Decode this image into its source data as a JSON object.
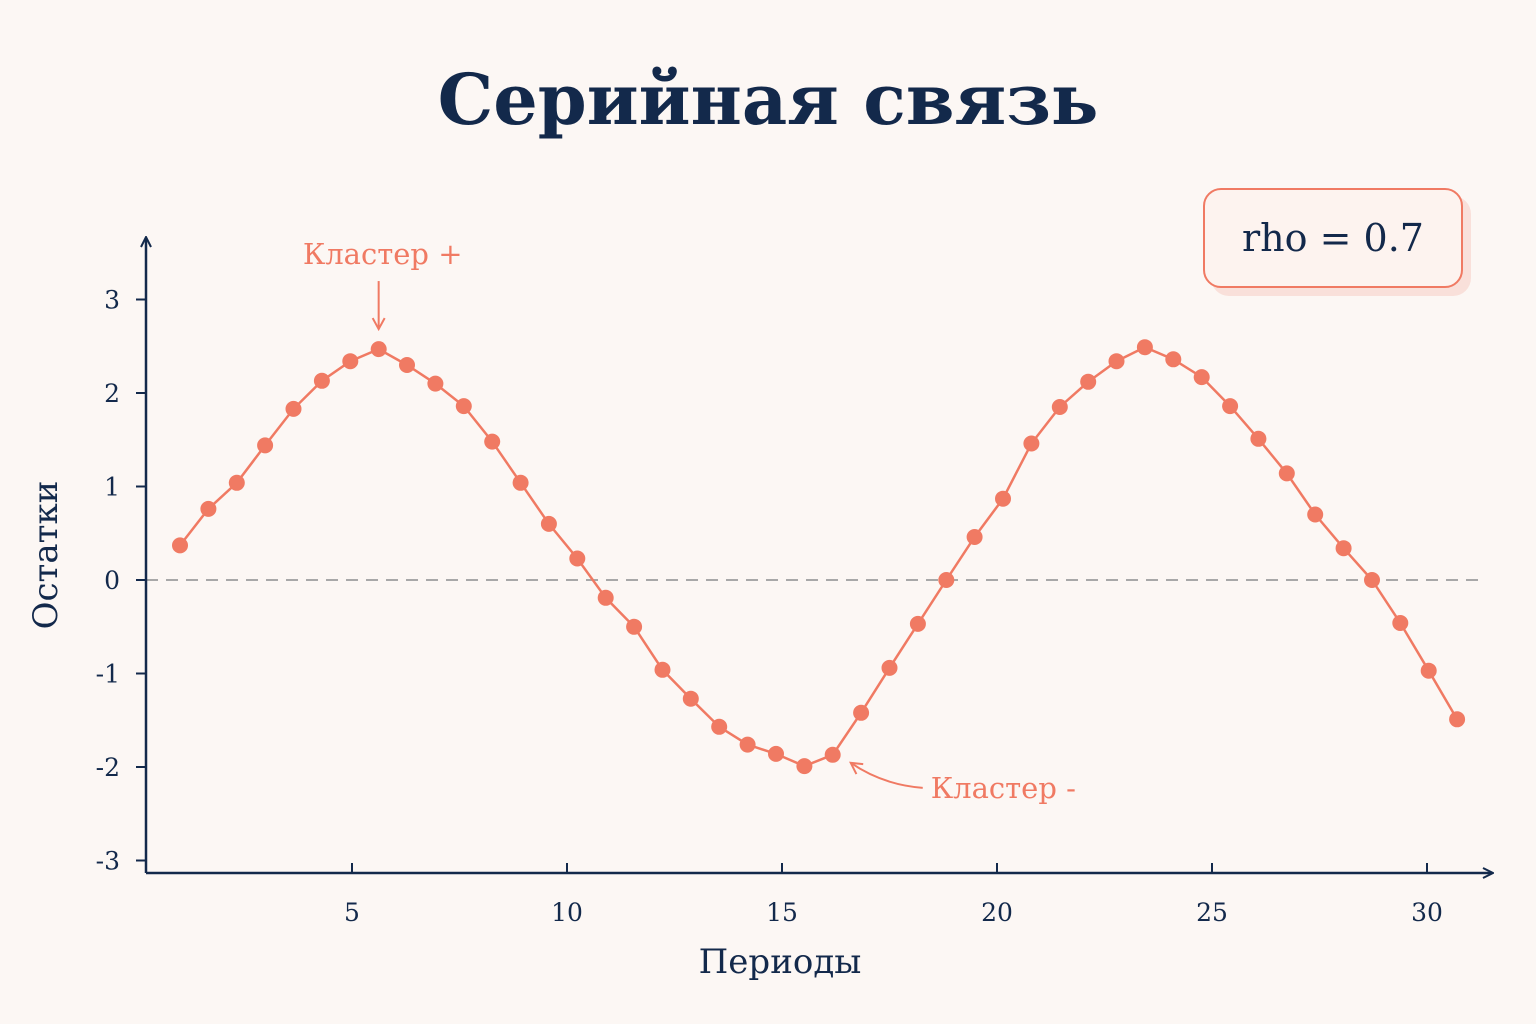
{
  "title": "Серийная связь",
  "rho_label": "rho = 0.7",
  "colors": {
    "series": "#f07a63",
    "axis": "#13294b",
    "zero_line": "#a8a8a8",
    "background": "#fcf7f4"
  },
  "chart_data": {
    "type": "line",
    "title": "Серийная связь",
    "xlabel": "Периоды",
    "ylabel": "Остатки",
    "xlim": [
      0.5,
      31.5
    ],
    "ylim": [
      -3,
      3.5
    ],
    "x_ticks": [
      5,
      10,
      15,
      20,
      25,
      30
    ],
    "y_ticks": [
      -3,
      -2,
      -1,
      0,
      1,
      2,
      3
    ],
    "grid": false,
    "zero_line": "dashed",
    "markers": true,
    "series": [
      {
        "x": [
          1.0,
          1.66,
          2.32,
          2.98,
          3.64,
          4.3,
          4.96,
          5.62,
          6.28,
          6.94,
          7.6,
          8.26,
          8.92,
          9.58,
          10.24,
          10.9,
          11.56,
          12.22,
          12.88,
          13.54,
          14.2,
          14.86,
          15.52,
          16.18,
          16.84,
          17.5,
          18.16,
          18.82,
          19.48,
          20.14,
          20.8,
          21.46,
          22.12,
          22.78,
          23.44,
          24.1,
          24.76,
          25.42,
          26.08,
          26.74,
          27.4,
          28.06,
          28.72,
          29.38,
          30.04,
          30.7
        ],
        "values": [
          0.37,
          0.76,
          1.04,
          1.44,
          1.83,
          2.13,
          2.34,
          2.47,
          2.3,
          2.1,
          1.86,
          1.48,
          1.04,
          0.6,
          0.23,
          -0.19,
          -0.5,
          -0.96,
          -1.27,
          -1.57,
          -1.76,
          -1.86,
          -1.99,
          -1.87,
          -1.42,
          -0.94,
          -0.47,
          0.0,
          0.46,
          0.87,
          1.46,
          1.85,
          2.12,
          2.34,
          2.49,
          2.36,
          2.17,
          1.86,
          1.51,
          1.14,
          0.7,
          0.34,
          0.0,
          -0.46,
          -0.97,
          -1.49
        ]
      }
    ],
    "annotations": [
      {
        "text": "Кластер +",
        "x": 5.62,
        "y": 2.47,
        "label_position": "above"
      },
      {
        "text": "Кластер -",
        "x": 16.18,
        "y": -1.87,
        "label_position": "right"
      }
    ]
  }
}
